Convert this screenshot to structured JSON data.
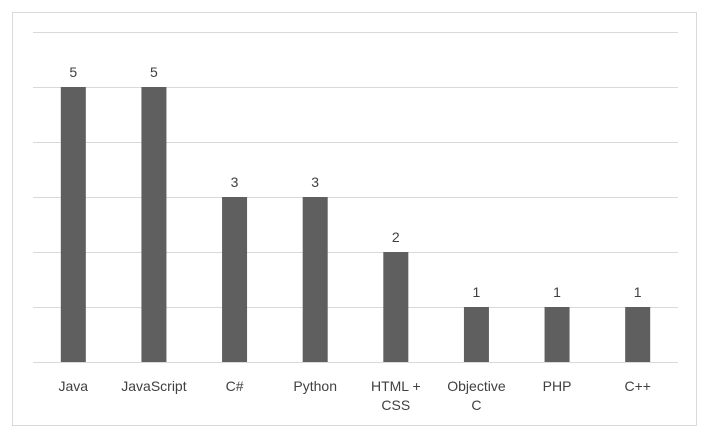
{
  "chart_data": {
    "type": "bar",
    "categories": [
      [
        "Java"
      ],
      [
        "JavaScript"
      ],
      [
        "C#"
      ],
      [
        "Python"
      ],
      [
        "HTML +",
        "CSS"
      ],
      [
        "Objective",
        "C"
      ],
      [
        "PHP"
      ],
      [
        "C++"
      ]
    ],
    "values": [
      5,
      5,
      3,
      3,
      2,
      1,
      1,
      1
    ],
    "ylim": [
      0,
      6
    ],
    "grid": true,
    "data_labels": true,
    "bar_color": "#5f5f5f",
    "grid_color": "#d9d9d9"
  }
}
